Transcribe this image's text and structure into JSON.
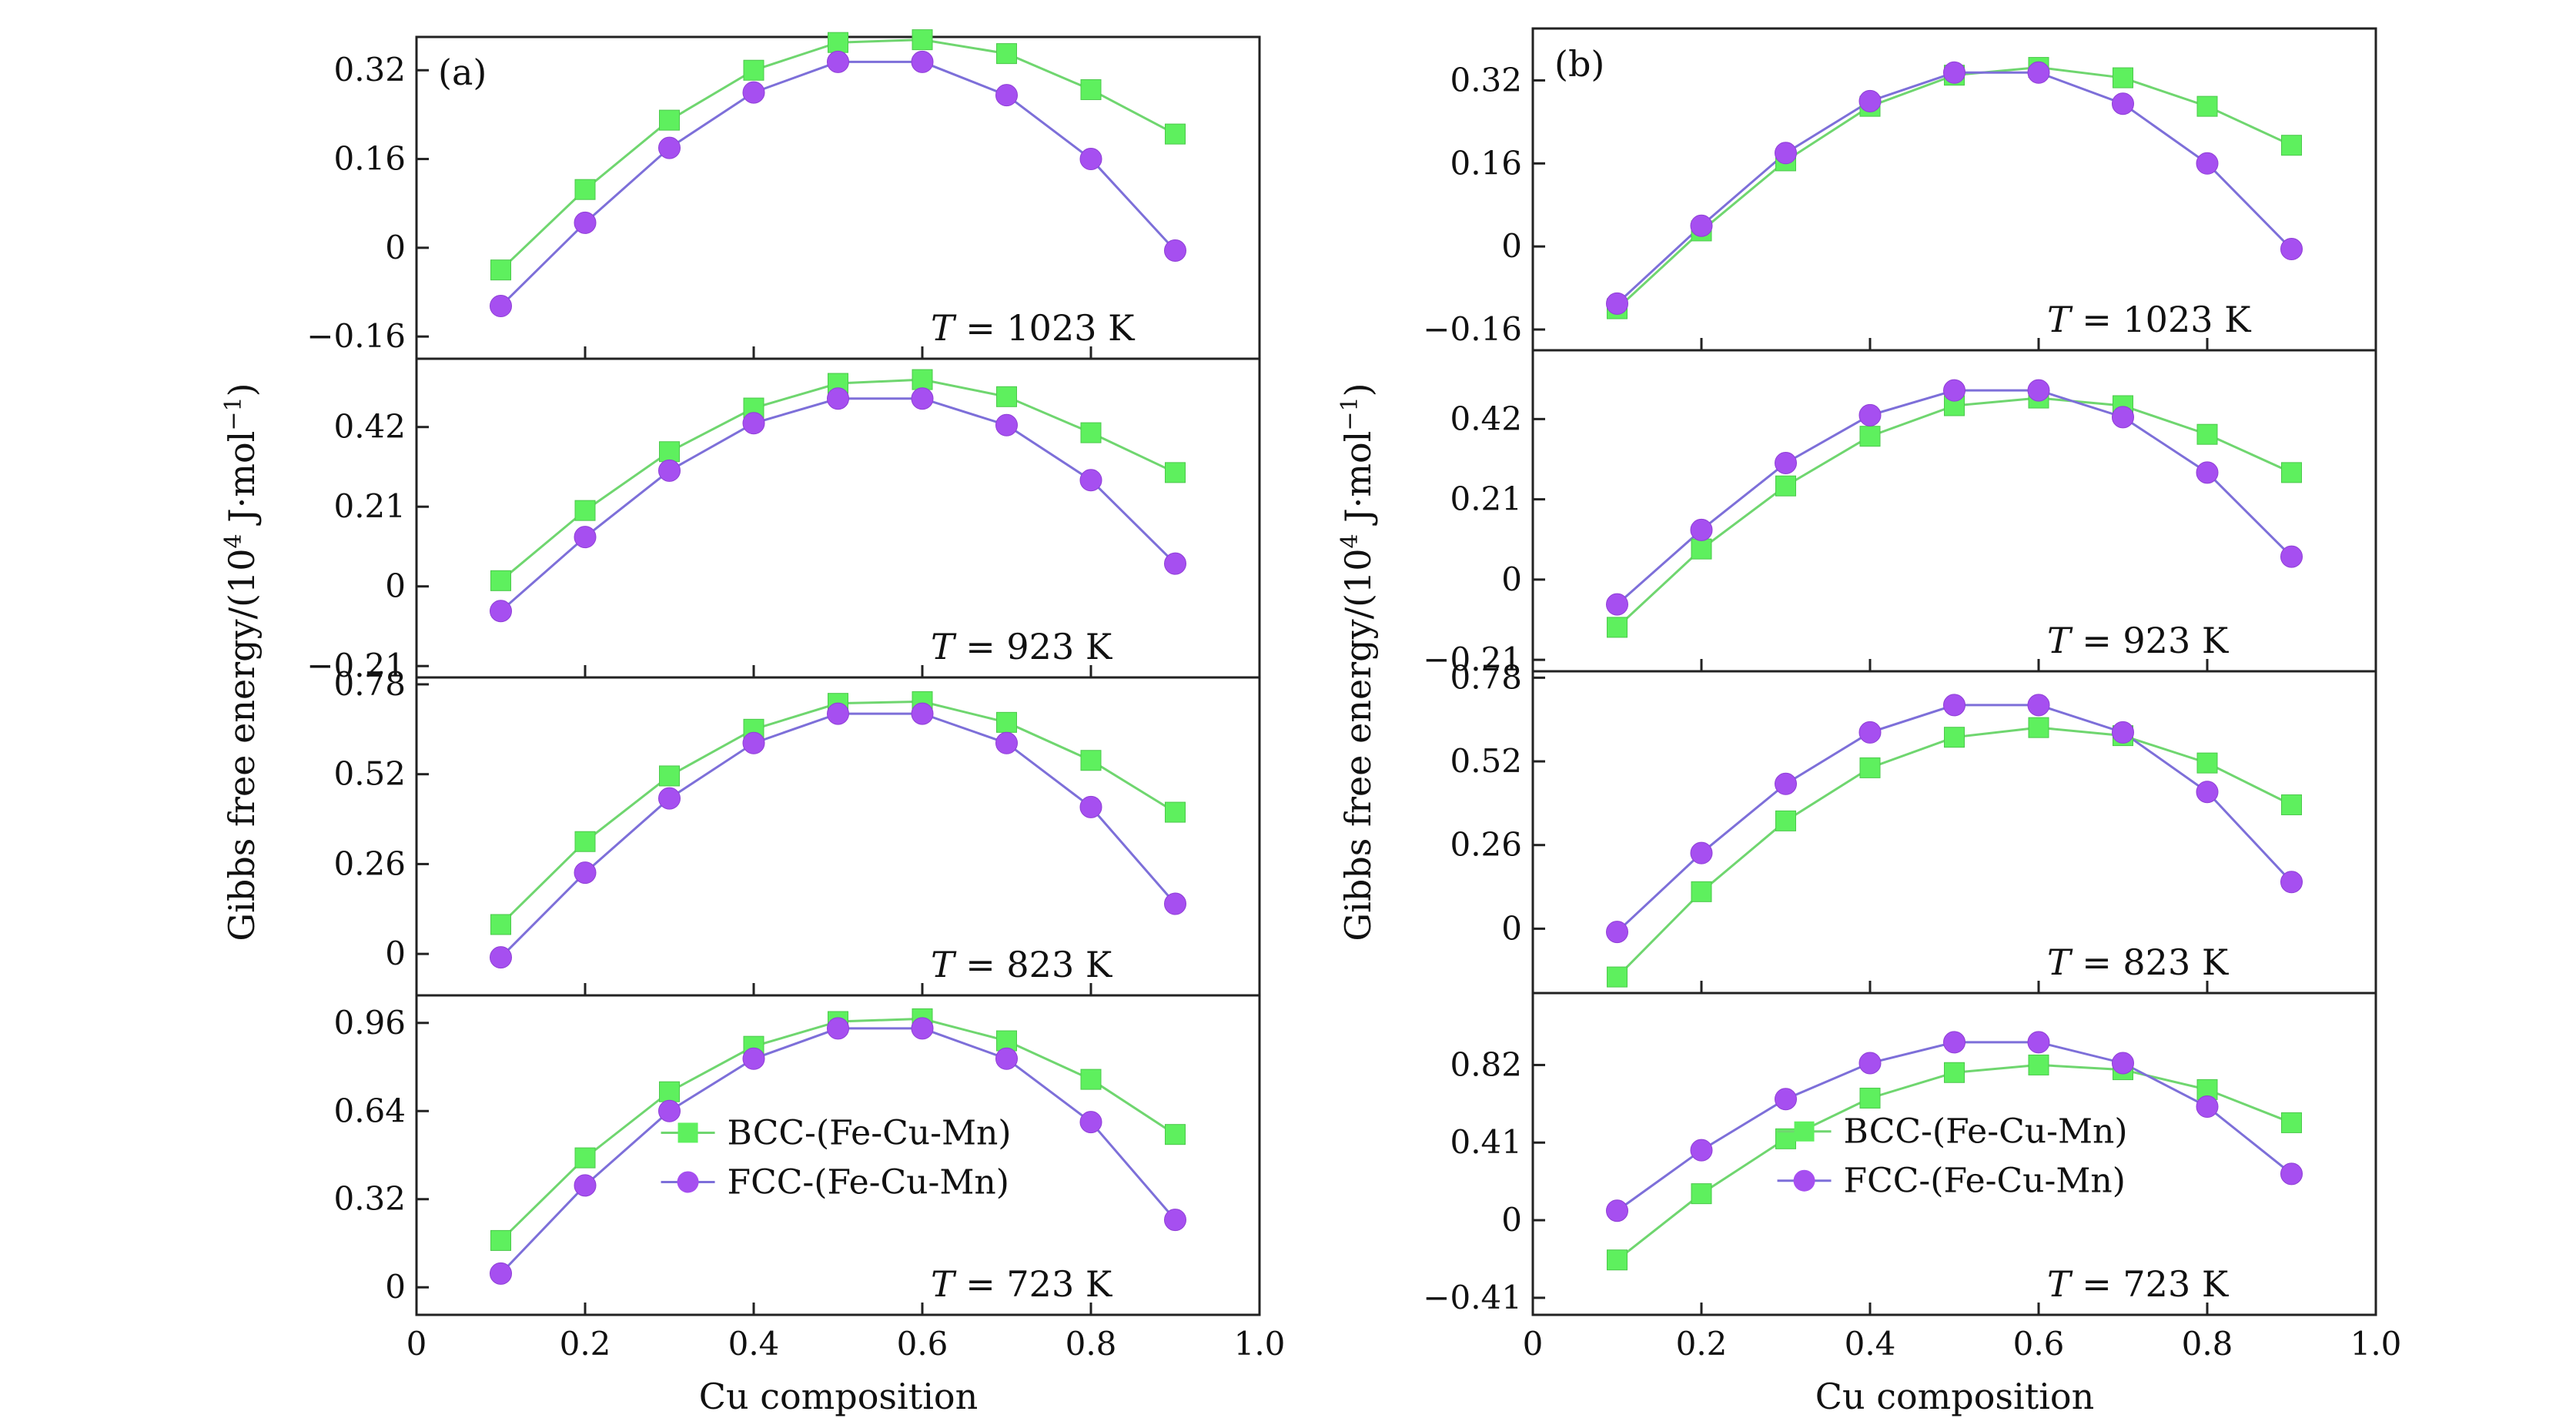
{
  "figure": {
    "xlabel": "Cu composition",
    "ylabel": "Gibbs free energy/(10",
    "ylabel_sup": "4",
    "ylabel_unit": " J·mol",
    "ylabel_unit_sup": "−1",
    "ylabel_close": ")",
    "legend": [
      "BCC-(Fe-Cu-Mn)",
      "FCC-(Fe-Cu-Mn)"
    ]
  },
  "chart_data": [
    {
      "panel": "(a)",
      "type": "line",
      "xlabel": "Cu composition",
      "xlim": [
        0,
        1.0
      ],
      "xticks": [
        "0",
        "0.2",
        "0.4",
        "0.6",
        "0.8",
        "1.0"
      ],
      "x": [
        0.1,
        0.2,
        0.3,
        0.4,
        0.5,
        0.6,
        0.7,
        0.8,
        0.9
      ],
      "series_names": [
        "BCC-(Fe-Cu-Mn)",
        "FCC-(Fe-Cu-Mn)"
      ],
      "colors": {
        "bcc": "#5ef05e",
        "fcc": "#a64ff0",
        "bcc_line": "#6fd66f",
        "fcc_line": "#7d6fd9"
      },
      "legend_placement": "lower-center",
      "subplots": [
        {
          "temperature_label": "T",
          "temperature_value": " = 1023 K",
          "ylim": [
            -0.2,
            0.38
          ],
          "yticks": [
            -0.16,
            0,
            0.16,
            0.32
          ],
          "ytick_labels": [
            "−0.16",
            "0",
            "0.16",
            "0.32"
          ],
          "bcc": [
            -0.04,
            0.105,
            0.23,
            0.32,
            0.37,
            0.375,
            0.35,
            0.285,
            0.205
          ],
          "fcc": [
            -0.105,
            0.045,
            0.18,
            0.28,
            0.335,
            0.335,
            0.275,
            0.16,
            -0.005
          ]
        },
        {
          "temperature_label": "T",
          "temperature_value": " = 923 K",
          "ylim": [
            -0.24,
            0.6
          ],
          "yticks": [
            -0.21,
            0,
            0.21,
            0.42
          ],
          "ytick_labels": [
            "−0.21",
            "0",
            "0.21",
            "0.42"
          ],
          "bcc": [
            0.015,
            0.2,
            0.355,
            0.47,
            0.535,
            0.545,
            0.5,
            0.405,
            0.3
          ],
          "fcc": [
            -0.065,
            0.13,
            0.305,
            0.43,
            0.495,
            0.495,
            0.425,
            0.28,
            0.06
          ]
        },
        {
          "temperature_label": "T",
          "temperature_value": " = 823 K",
          "ylim": [
            -0.12,
            0.8
          ],
          "yticks": [
            0,
            0.26,
            0.52,
            0.78
          ],
          "ytick_labels": [
            "0",
            "0.26",
            "0.52",
            "0.78"
          ],
          "bcc": [
            0.085,
            0.325,
            0.515,
            0.65,
            0.725,
            0.73,
            0.67,
            0.56,
            0.41
          ],
          "fcc": [
            -0.01,
            0.235,
            0.45,
            0.61,
            0.695,
            0.695,
            0.61,
            0.425,
            0.145
          ]
        },
        {
          "temperature_label": "T",
          "temperature_value": " = 723 K",
          "ylim": [
            -0.1,
            1.06
          ],
          "yticks": [
            0,
            0.32,
            0.64,
            0.96
          ],
          "ytick_labels": [
            "0",
            "0.32",
            "0.64",
            "0.96"
          ],
          "bcc": [
            0.17,
            0.47,
            0.71,
            0.875,
            0.965,
            0.975,
            0.895,
            0.755,
            0.555
          ],
          "fcc": [
            0.05,
            0.37,
            0.64,
            0.83,
            0.94,
            0.94,
            0.83,
            0.6,
            0.245
          ]
        }
      ]
    },
    {
      "panel": "(b)",
      "type": "line",
      "xlabel": "Cu composition",
      "xlim": [
        0,
        1.0
      ],
      "xticks": [
        "0",
        "0.2",
        "0.4",
        "0.6",
        "0.8",
        "1.0"
      ],
      "x": [
        0.1,
        0.2,
        0.3,
        0.4,
        0.5,
        0.6,
        0.7,
        0.8,
        0.9
      ],
      "series_names": [
        "BCC-(Fe-Cu-Mn)",
        "FCC-(Fe-Cu-Mn)"
      ],
      "colors": {
        "bcc": "#5ef05e",
        "fcc": "#a64ff0",
        "bcc_line": "#6fd66f",
        "fcc_line": "#7d6fd9"
      },
      "legend_placement": "lower-center",
      "subplots": [
        {
          "temperature_label": "T",
          "temperature_value": " = 1023 K",
          "ylim": [
            -0.2,
            0.42
          ],
          "yticks": [
            -0.16,
            0,
            0.16,
            0.32
          ],
          "ytick_labels": [
            "−0.16",
            "0",
            "0.16",
            "0.32"
          ],
          "bcc": [
            -0.12,
            0.03,
            0.165,
            0.27,
            0.33,
            0.345,
            0.325,
            0.27,
            0.195
          ],
          "fcc": [
            -0.11,
            0.04,
            0.18,
            0.28,
            0.335,
            0.335,
            0.275,
            0.16,
            -0.005
          ]
        },
        {
          "temperature_label": "T",
          "temperature_value": " = 923 K",
          "ylim": [
            -0.24,
            0.6
          ],
          "yticks": [
            -0.21,
            0,
            0.21,
            0.42
          ],
          "ytick_labels": [
            "−0.21",
            "0",
            "0.21",
            "0.42"
          ],
          "bcc": [
            -0.125,
            0.08,
            0.245,
            0.375,
            0.455,
            0.475,
            0.455,
            0.38,
            0.28
          ],
          "fcc": [
            -0.065,
            0.13,
            0.305,
            0.43,
            0.495,
            0.495,
            0.425,
            0.28,
            0.06
          ]
        },
        {
          "temperature_label": "T",
          "temperature_value": " = 823 K",
          "ylim": [
            -0.2,
            0.8
          ],
          "yticks": [
            0,
            0.26,
            0.52,
            0.78
          ],
          "ytick_labels": [
            "0",
            "0.26",
            "0.52",
            "0.78"
          ],
          "bcc": [
            -0.15,
            0.115,
            0.335,
            0.5,
            0.595,
            0.625,
            0.6,
            0.515,
            0.385
          ],
          "fcc": [
            -0.01,
            0.235,
            0.45,
            0.61,
            0.695,
            0.695,
            0.61,
            0.425,
            0.145
          ]
        },
        {
          "temperature_label": "T",
          "temperature_value": " = 723 K",
          "ylim": [
            -0.5,
            1.2
          ],
          "yticks": [
            -0.41,
            0,
            0.41,
            0.82
          ],
          "ytick_labels": [
            "−0.41",
            "0",
            "0.41",
            "0.82"
          ],
          "bcc": [
            -0.21,
            0.14,
            0.43,
            0.645,
            0.78,
            0.82,
            0.795,
            0.69,
            0.515
          ],
          "fcc": [
            0.05,
            0.37,
            0.64,
            0.83,
            0.94,
            0.94,
            0.83,
            0.6,
            0.245
          ]
        }
      ]
    }
  ]
}
